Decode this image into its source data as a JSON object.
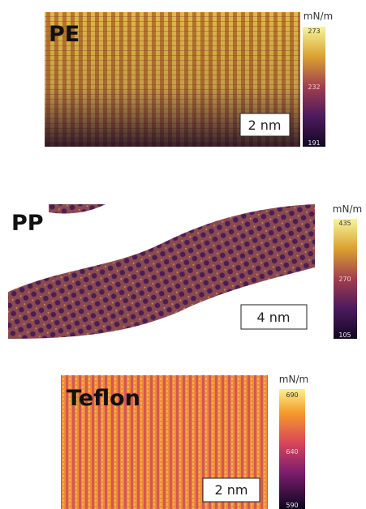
{
  "panels": [
    {
      "label": "PE",
      "scale_bar": "2 nm",
      "colorbar": {
        "unit": "mN/m",
        "ticks": [
          273,
          232,
          191
        ]
      }
    },
    {
      "label": "PP",
      "scale_bar": "4 nm",
      "colorbar": {
        "unit": "mN/m",
        "ticks": [
          435,
          270,
          105
        ]
      }
    },
    {
      "label": "Teflon",
      "scale_bar": "2 nm",
      "colorbar": {
        "unit": "mN/m",
        "ticks": [
          690,
          640,
          590
        ]
      }
    }
  ]
}
